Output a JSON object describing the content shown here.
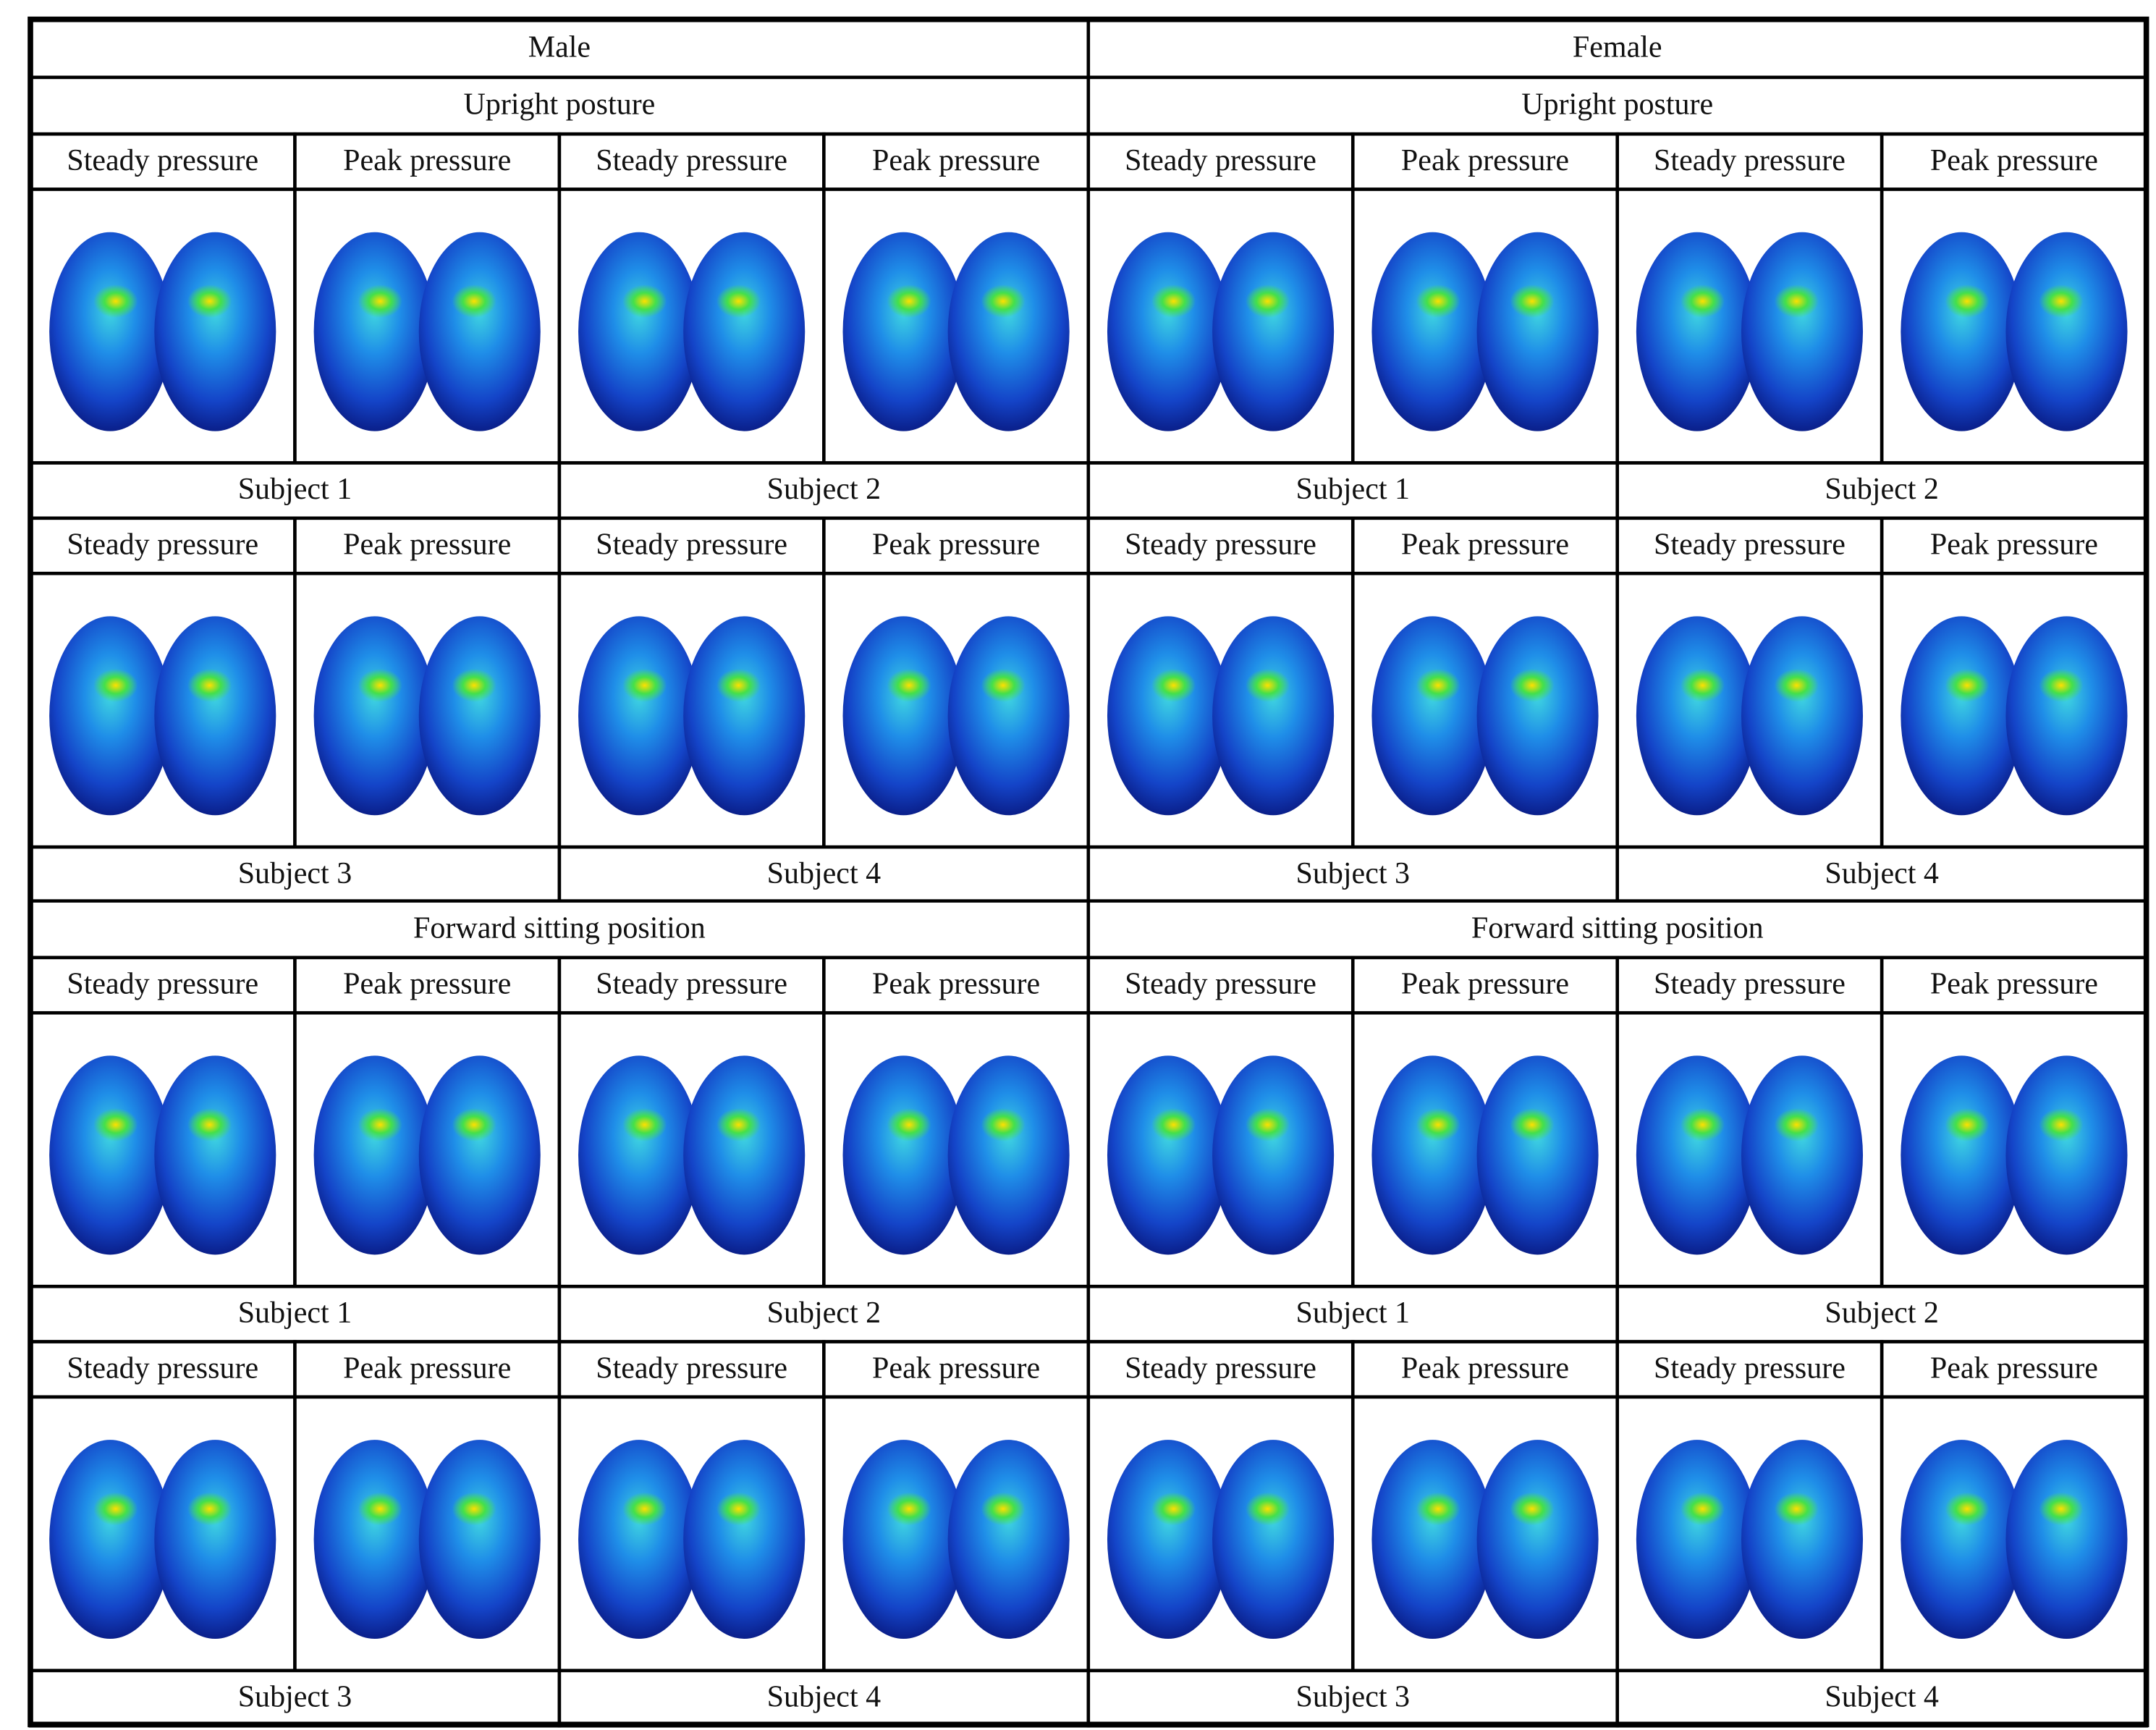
{
  "genders": [
    {
      "label": "Male",
      "postures": [
        {
          "title": "Upright posture",
          "rows": [
            [
              {
                "subject": "Subject 1",
                "columns": [
                  "Steady pressure",
                  "Peak pressure"
                ]
              },
              {
                "subject": "Subject 2",
                "columns": [
                  "Steady pressure",
                  "Peak pressure"
                ]
              }
            ],
            [
              {
                "subject": "Subject 3",
                "columns": [
                  "Steady pressure",
                  "Peak pressure"
                ]
              },
              {
                "subject": "Subject 4",
                "columns": [
                  "Steady pressure",
                  "Peak pressure"
                ]
              }
            ]
          ]
        },
        {
          "title": "Forward sitting position",
          "rows": [
            [
              {
                "subject": "Subject 1",
                "columns": [
                  "Steady pressure",
                  "Peak pressure"
                ]
              },
              {
                "subject": "Subject 2",
                "columns": [
                  "Steady pressure",
                  "Peak pressure"
                ]
              }
            ],
            [
              {
                "subject": "Subject 3",
                "columns": [
                  "Steady pressure",
                  "Peak pressure"
                ]
              },
              {
                "subject": "Subject 4",
                "columns": [
                  "Steady pressure",
                  "Peak pressure"
                ]
              }
            ]
          ]
        }
      ]
    },
    {
      "label": "Female",
      "postures": [
        {
          "title": "Upright posture",
          "rows": [
            [
              {
                "subject": "Subject 1",
                "columns": [
                  "Steady pressure",
                  "Peak pressure"
                ]
              },
              {
                "subject": "Subject 2",
                "columns": [
                  "Steady pressure",
                  "Peak pressure"
                ]
              }
            ],
            [
              {
                "subject": "Subject 3",
                "columns": [
                  "Steady pressure",
                  "Peak pressure"
                ]
              },
              {
                "subject": "Subject 4",
                "columns": [
                  "Steady pressure",
                  "Peak pressure"
                ]
              }
            ]
          ]
        },
        {
          "title": "Forward sitting position",
          "rows": [
            [
              {
                "subject": "Subject 1",
                "columns": [
                  "Steady pressure",
                  "Peak pressure"
                ]
              },
              {
                "subject": "Subject 2",
                "columns": [
                  "Steady pressure",
                  "Peak pressure"
                ]
              }
            ],
            [
              {
                "subject": "Subject 3",
                "columns": [
                  "Steady pressure",
                  "Peak pressure"
                ]
              },
              {
                "subject": "Subject 4",
                "columns": [
                  "Steady pressure",
                  "Peak pressure"
                ]
              }
            ]
          ]
        }
      ]
    }
  ]
}
